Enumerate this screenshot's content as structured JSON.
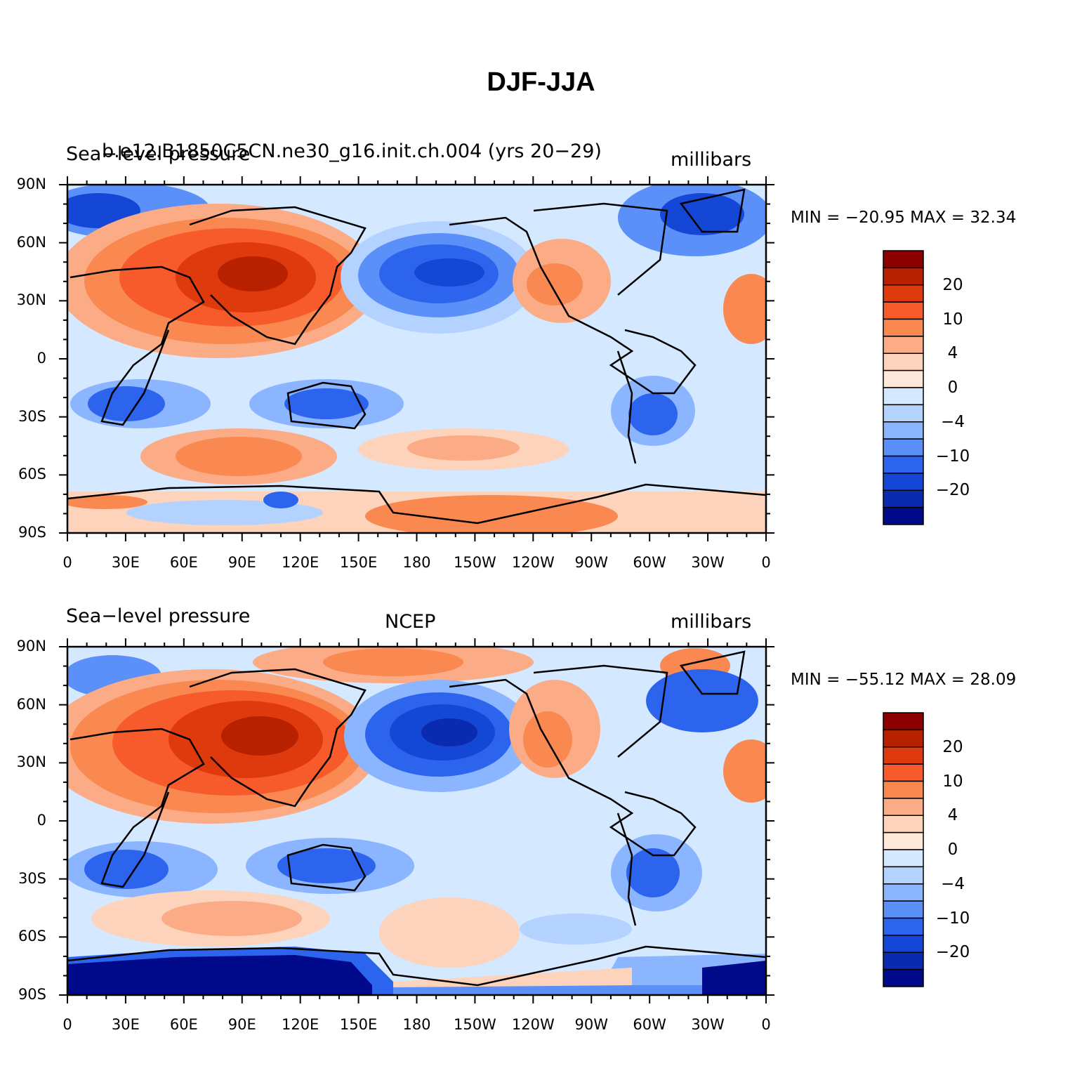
{
  "title": "DJF-JJA",
  "x_ticks": [
    "0",
    "30E",
    "60E",
    "90E",
    "120E",
    "150E",
    "180",
    "150W",
    "120W",
    "90W",
    "60W",
    "30W",
    "0"
  ],
  "y_ticks": [
    "90N",
    "60N",
    "30N",
    "0",
    "30S",
    "60S",
    "90S"
  ],
  "colorbar": {
    "labels": [
      "20",
      "10",
      "4",
      "0",
      "−4",
      "−10",
      "−20"
    ],
    "colors": [
      "#8b0000",
      "#b82100",
      "#de3a0d",
      "#f75b2b",
      "#f98851",
      "#fbab85",
      "#fdd3bb",
      "#fee8d9",
      "#d4e8ff",
      "#b4d2ff",
      "#8cb5ff",
      "#5a90f7",
      "#2d64ee",
      "#1447d5",
      "#0a2bb0",
      "#000a8a"
    ]
  },
  "panels": [
    {
      "left_label": "Sea−level pressure",
      "center_label": "b.e12.B1850C5CN.ne30_g16.init.ch.004 (yrs 20−29)",
      "right_label": "millibars",
      "min_label": "MIN = −20.95  MAX =   32.34",
      "min": -20.95,
      "max": 32.34
    },
    {
      "left_label": "Sea−level pressure",
      "center_label": "NCEP",
      "right_label": "millibars",
      "min_label": "MIN = −55.12  MAX =   28.09",
      "min": -55.12,
      "max": 28.09
    }
  ]
}
